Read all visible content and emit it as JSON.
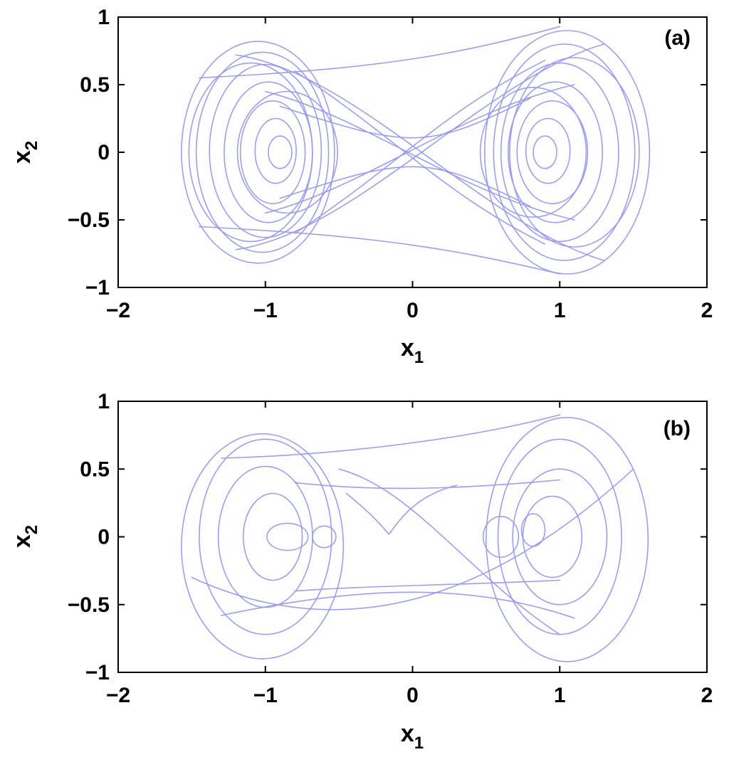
{
  "chart_data": [
    {
      "type": "line",
      "panel_label": "(a)",
      "xlabel": {
        "main": "x",
        "sub": "1"
      },
      "ylabel": {
        "main": "x",
        "sub": "2"
      },
      "xlim": [
        -2,
        2
      ],
      "ylim": [
        -1,
        1
      ],
      "xticks": [
        -2,
        -1,
        0,
        1,
        2
      ],
      "xtick_labels": [
        "−2",
        "−1",
        "0",
        "1",
        "2"
      ],
      "yticks": [
        -1,
        -0.5,
        0,
        0.5,
        1
      ],
      "ytick_labels": [
        "−1",
        "−0.5",
        "0",
        "0.5",
        "1"
      ],
      "grid": false,
      "line_color": "#9999ee",
      "loops": [
        {
          "cx": -1.05,
          "cy": 0.0,
          "rx": 0.52,
          "ry": 0.82
        },
        {
          "cx": -1.02,
          "cy": 0.0,
          "rx": 0.45,
          "ry": 0.74
        },
        {
          "cx": -1.0,
          "cy": 0.01,
          "rx": 0.38,
          "ry": 0.64
        },
        {
          "cx": -0.98,
          "cy": 0.0,
          "rx": 0.3,
          "ry": 0.52
        },
        {
          "cx": -0.95,
          "cy": 0.0,
          "rx": 0.22,
          "ry": 0.38
        },
        {
          "cx": -0.93,
          "cy": 0.01,
          "rx": 0.14,
          "ry": 0.24
        },
        {
          "cx": -0.9,
          "cy": 0.0,
          "rx": 0.08,
          "ry": 0.12
        },
        {
          "cx": -1.1,
          "cy": 0.0,
          "rx": 0.42,
          "ry": 0.66
        },
        {
          "cx": -0.85,
          "cy": 0.0,
          "rx": 0.34,
          "ry": 0.45
        },
        {
          "cx": 1.05,
          "cy": 0.0,
          "rx": 0.56,
          "ry": 0.9
        },
        {
          "cx": 1.03,
          "cy": 0.0,
          "rx": 0.48,
          "ry": 0.8
        },
        {
          "cx": 1.0,
          "cy": 0.0,
          "rx": 0.4,
          "ry": 0.66
        },
        {
          "cx": 0.97,
          "cy": 0.0,
          "rx": 0.32,
          "ry": 0.52
        },
        {
          "cx": 0.95,
          "cy": 0.0,
          "rx": 0.24,
          "ry": 0.38
        },
        {
          "cx": 0.92,
          "cy": 0.01,
          "rx": 0.15,
          "ry": 0.24
        },
        {
          "cx": 0.9,
          "cy": 0.0,
          "rx": 0.08,
          "ry": 0.12
        },
        {
          "cx": 1.1,
          "cy": 0.0,
          "rx": 0.44,
          "ry": 0.7
        },
        {
          "cx": 0.82,
          "cy": 0.0,
          "rx": 0.36,
          "ry": 0.48
        }
      ],
      "crossings": [
        [
          [
            -1.2,
            0.72
          ],
          [
            -0.4,
            0.6
          ],
          [
            0.5,
            -0.55
          ],
          [
            1.3,
            -0.8
          ]
        ],
        [
          [
            -1.2,
            -0.72
          ],
          [
            -0.4,
            -0.6
          ],
          [
            0.5,
            0.55
          ],
          [
            1.3,
            0.8
          ]
        ],
        [
          [
            -1.45,
            0.55
          ],
          [
            -0.2,
            0.62
          ],
          [
            0.3,
            0.72
          ],
          [
            1.0,
            0.93
          ]
        ],
        [
          [
            -1.45,
            -0.55
          ],
          [
            -0.2,
            -0.62
          ],
          [
            0.3,
            -0.72
          ],
          [
            1.0,
            -0.9
          ]
        ],
        [
          [
            -0.8,
            0.6
          ],
          [
            -0.1,
            0.1
          ],
          [
            0.2,
            -0.3
          ],
          [
            0.9,
            -0.68
          ]
        ],
        [
          [
            -0.8,
            -0.6
          ],
          [
            -0.1,
            -0.1
          ],
          [
            0.2,
            0.3
          ],
          [
            0.9,
            0.68
          ]
        ],
        [
          [
            -0.9,
            0.34
          ],
          [
            0.0,
            0.02
          ],
          [
            0.1,
            0.02
          ],
          [
            0.8,
            0.4
          ]
        ],
        [
          [
            -0.9,
            -0.34
          ],
          [
            0.0,
            -0.02
          ],
          [
            0.1,
            -0.02
          ],
          [
            0.8,
            -0.4
          ]
        ],
        [
          [
            -1.0,
            0.45
          ],
          [
            -0.3,
            0.25
          ],
          [
            0.3,
            -0.3
          ],
          [
            1.1,
            -0.5
          ]
        ],
        [
          [
            -1.0,
            -0.45
          ],
          [
            -0.3,
            -0.25
          ],
          [
            0.3,
            0.3
          ],
          [
            1.1,
            0.5
          ]
        ]
      ]
    },
    {
      "type": "line",
      "panel_label": "(b)",
      "xlabel": {
        "main": "x",
        "sub": "1"
      },
      "ylabel": {
        "main": "x",
        "sub": "2"
      },
      "xlim": [
        -2,
        2
      ],
      "ylim": [
        -1,
        1
      ],
      "xticks": [
        -2,
        -1,
        0,
        1,
        2
      ],
      "xtick_labels": [
        "−2",
        "−1",
        "0",
        "1",
        "2"
      ],
      "yticks": [
        -1,
        -0.5,
        0,
        0.5,
        1
      ],
      "ytick_labels": [
        "−1",
        "−0.5",
        "0",
        "0.5",
        "1"
      ],
      "grid": false,
      "line_color": "#9999ee",
      "loops": [
        {
          "cx": -1.02,
          "cy": -0.07,
          "rx": 0.55,
          "ry": 0.83
        },
        {
          "cx": -1.0,
          "cy": 0.0,
          "rx": 0.45,
          "ry": 0.72
        },
        {
          "cx": -1.0,
          "cy": 0.0,
          "rx": 0.32,
          "ry": 0.52
        },
        {
          "cx": -0.95,
          "cy": 0.0,
          "rx": 0.2,
          "ry": 0.32
        },
        {
          "cx": -0.85,
          "cy": 0.0,
          "rx": 0.14,
          "ry": 0.1
        },
        {
          "cx": -0.6,
          "cy": 0.0,
          "rx": 0.08,
          "ry": 0.08
        },
        {
          "cx": 1.05,
          "cy": -0.02,
          "rx": 0.55,
          "ry": 0.9
        },
        {
          "cx": 1.0,
          "cy": 0.0,
          "rx": 0.42,
          "ry": 0.72
        },
        {
          "cx": 1.0,
          "cy": 0.0,
          "rx": 0.32,
          "ry": 0.5
        },
        {
          "cx": 0.95,
          "cy": 0.0,
          "rx": 0.2,
          "ry": 0.3
        },
        {
          "cx": 0.82,
          "cy": 0.05,
          "rx": 0.08,
          "ry": 0.12
        },
        {
          "cx": 0.6,
          "cy": 0.0,
          "rx": 0.12,
          "ry": 0.15
        }
      ],
      "crossings": [
        [
          [
            -1.3,
            0.58
          ],
          [
            -0.6,
            0.6
          ],
          [
            0.3,
            0.7
          ],
          [
            1.0,
            0.9
          ]
        ],
        [
          [
            -1.3,
            -0.58
          ],
          [
            -0.5,
            -0.4
          ],
          [
            0.3,
            -0.3
          ],
          [
            1.1,
            -0.6
          ]
        ],
        [
          [
            -0.8,
            0.4
          ],
          [
            -0.3,
            0.34
          ],
          [
            0.2,
            0.34
          ],
          [
            1.0,
            0.42
          ]
        ],
        [
          [
            -0.8,
            -0.4
          ],
          [
            -0.3,
            -0.36
          ],
          [
            0.2,
            -0.36
          ],
          [
            1.0,
            -0.32
          ]
        ],
        [
          [
            -0.45,
            0.32
          ],
          [
            -0.2,
            0.1
          ],
          [
            -0.18,
            0.03
          ],
          [
            -0.16,
            0.02
          ]
        ],
        [
          [
            -0.16,
            0.02
          ],
          [
            -0.1,
            0.1
          ],
          [
            0.0,
            0.3
          ],
          [
            0.3,
            0.38
          ]
        ],
        [
          [
            -0.5,
            0.5
          ],
          [
            0.0,
            0.36
          ],
          [
            0.4,
            -0.3
          ],
          [
            1.0,
            -0.72
          ]
        ],
        [
          [
            -1.5,
            -0.3
          ],
          [
            -0.5,
            -0.8
          ],
          [
            0.5,
            -0.5
          ],
          [
            1.5,
            0.5
          ]
        ]
      ]
    }
  ]
}
